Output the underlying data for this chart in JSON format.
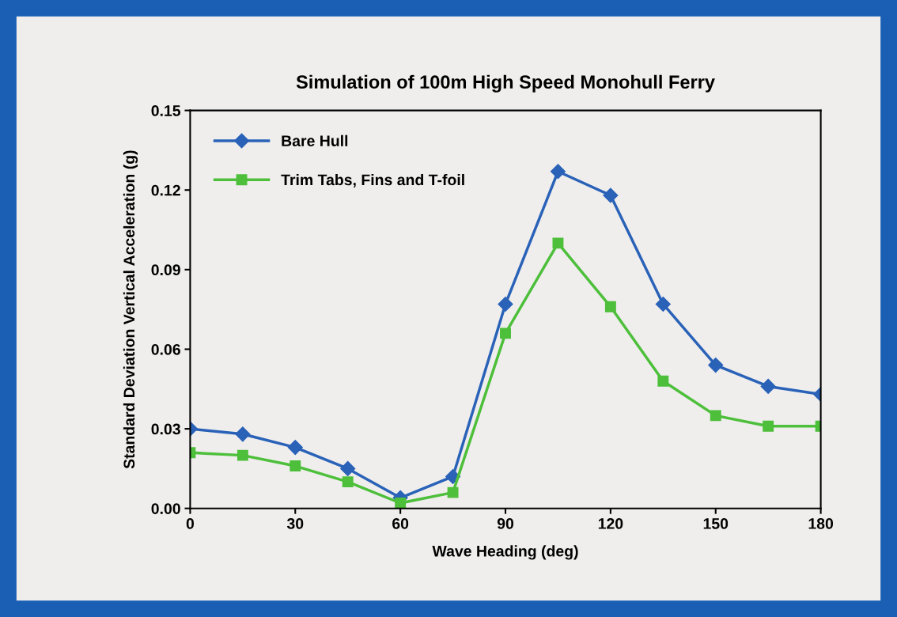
{
  "chart_data": {
    "type": "line",
    "title": "Simulation of 100m High Speed Monohull Ferry",
    "xlabel": "Wave Heading (deg)",
    "ylabel": "Standard Deviation Vertical Acceleration (g)",
    "x": [
      0,
      15,
      30,
      45,
      60,
      75,
      90,
      105,
      120,
      135,
      150,
      165,
      180
    ],
    "series": [
      {
        "name": "Bare Hull",
        "color": "#2a62b8",
        "marker": "diamond",
        "values": [
          0.03,
          0.028,
          0.023,
          0.015,
          0.004,
          0.012,
          0.077,
          0.127,
          0.118,
          0.077,
          0.054,
          0.046,
          0.043
        ]
      },
      {
        "name": "Trim Tabs, Fins and T-foil",
        "color": "#4dbf3a",
        "marker": "square",
        "values": [
          0.021,
          0.02,
          0.016,
          0.01,
          0.002,
          0.006,
          0.066,
          0.1,
          0.076,
          0.048,
          0.035,
          0.031,
          0.031
        ]
      }
    ],
    "xlim": [
      0,
      180
    ],
    "xticks": [
      0,
      30,
      60,
      90,
      120,
      150,
      180
    ],
    "ylim": [
      0,
      0.15
    ],
    "yticks": [
      {
        "value": 0,
        "label": "0.00"
      },
      {
        "value": 0.03,
        "label": "0.03"
      },
      {
        "value": 0.06,
        "label": "0.06"
      },
      {
        "value": 0.09,
        "label": "0.09"
      },
      {
        "value": 0.12,
        "label": "0.12"
      },
      {
        "value": 0.15,
        "label": "0.15"
      }
    ],
    "grid": false,
    "legend": "top left",
    "line_style": "solid"
  }
}
